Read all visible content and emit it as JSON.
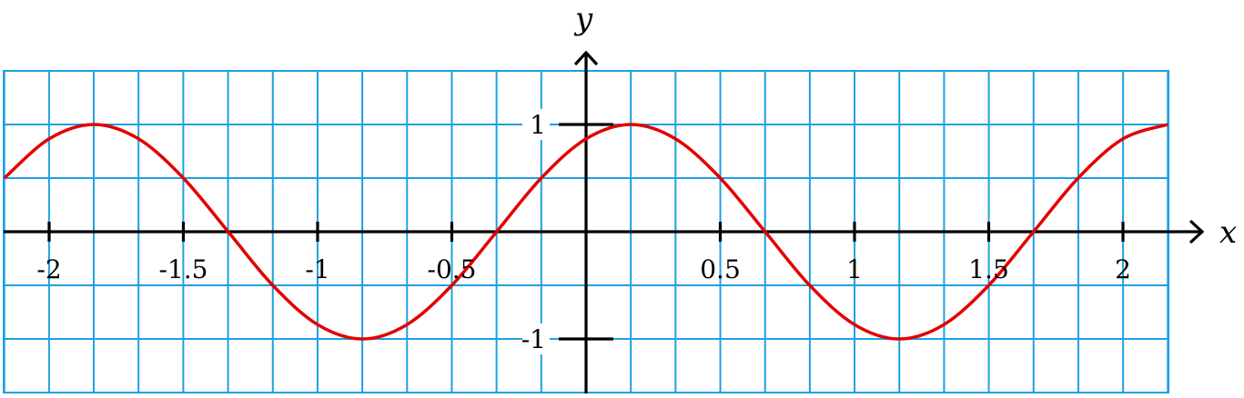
{
  "chart_data": {
    "type": "line",
    "title": "",
    "xlabel": "x",
    "ylabel": "y",
    "xlim": [
      -2.167,
      2.167
    ],
    "ylim": [
      -1.5,
      1.5
    ],
    "grid": true,
    "grid_step": {
      "x": 0.1667,
      "y": 0.5
    },
    "x_ticks": [
      {
        "value": -2,
        "label": "-2"
      },
      {
        "value": -1.5,
        "label": "-1.5"
      },
      {
        "value": -1,
        "label": "-1"
      },
      {
        "value": -0.5,
        "label": "-0.5"
      },
      {
        "value": 0.5,
        "label": "0.5"
      },
      {
        "value": 1,
        "label": "1"
      },
      {
        "value": 1.5,
        "label": "1.5"
      },
      {
        "value": 2,
        "label": "2"
      }
    ],
    "y_ticks": [
      {
        "value": 1,
        "label": "1"
      },
      {
        "value": -1,
        "label": "-1"
      }
    ],
    "series": [
      {
        "function": "sin(pi*(x + 1/3))",
        "color": "#e30000",
        "x": [
          -2.167,
          -2.0,
          -1.833,
          -1.667,
          -1.5,
          -1.333,
          -1.167,
          -1.0,
          -0.833,
          -0.667,
          -0.5,
          -0.333,
          -0.167,
          0.0,
          0.167,
          0.333,
          0.5,
          0.667,
          0.833,
          1.0,
          1.167,
          1.333,
          1.5,
          1.667,
          1.833,
          2.0,
          2.167
        ],
        "y": [
          0.5,
          0.866,
          1.0,
          0.866,
          0.5,
          0.0,
          -0.5,
          -0.866,
          -1.0,
          -0.866,
          -0.5,
          0.0,
          0.5,
          0.866,
          1.0,
          0.866,
          0.5,
          0.0,
          -0.5,
          -0.866,
          -1.0,
          -0.866,
          -0.5,
          0.0,
          0.5,
          0.866,
          1.0
        ]
      }
    ],
    "colors": {
      "grid": "#1ba1e2",
      "curve": "#e30000",
      "axes": "#000000"
    }
  }
}
